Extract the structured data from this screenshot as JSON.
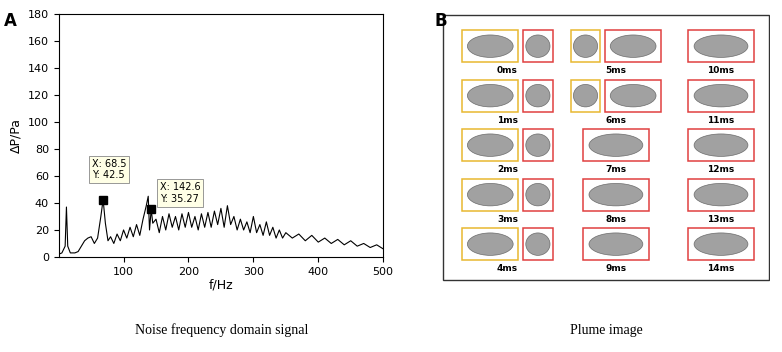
{
  "chart_data": {
    "type": "line",
    "panel": "A",
    "caption": "Noise frequency domain signal",
    "x_label": "f/Hz",
    "y_label": "ΔP/Pa",
    "color": "#000000",
    "x": [
      0,
      5,
      10,
      12,
      14,
      18,
      25,
      30,
      35,
      40,
      45,
      50,
      55,
      60,
      65,
      68.5,
      72,
      76,
      80,
      85,
      90,
      95,
      100,
      105,
      110,
      115,
      120,
      125,
      130,
      135,
      138,
      140,
      142.6,
      145,
      150,
      155,
      160,
      165,
      170,
      175,
      180,
      185,
      190,
      195,
      200,
      205,
      210,
      215,
      220,
      225,
      230,
      235,
      240,
      245,
      250,
      255,
      260,
      265,
      270,
      275,
      280,
      285,
      290,
      295,
      300,
      305,
      310,
      315,
      320,
      325,
      330,
      335,
      340,
      345,
      350,
      360,
      370,
      380,
      390,
      400,
      410,
      420,
      430,
      440,
      450,
      460,
      470,
      480,
      490,
      500
    ],
    "values": [
      2,
      3,
      8,
      37,
      8,
      3,
      3,
      4,
      8,
      12,
      14,
      15,
      10,
      14,
      30,
      42.5,
      25,
      12,
      15,
      10,
      17,
      12,
      20,
      14,
      22,
      15,
      24,
      16,
      28,
      38,
      45,
      20,
      35.27,
      25,
      28,
      18,
      30,
      20,
      32,
      22,
      30,
      20,
      32,
      22,
      33,
      22,
      30,
      20,
      32,
      22,
      33,
      22,
      34,
      24,
      36,
      22,
      38,
      24,
      30,
      20,
      28,
      20,
      26,
      18,
      30,
      18,
      24,
      16,
      26,
      16,
      22,
      14,
      20,
      14,
      18,
      14,
      17,
      12,
      16,
      11,
      14,
      10,
      13,
      9,
      12,
      8,
      10,
      7,
      9,
      6
    ],
    "xlim": [
      0,
      500
    ],
    "xticks": [
      100,
      200,
      300,
      400,
      500
    ],
    "ylim": [
      0,
      180
    ],
    "yticks": [
      0,
      20,
      40,
      60,
      80,
      100,
      120,
      140,
      160,
      180
    ],
    "marker": "square",
    "annotations": [
      {
        "x": 68.5,
        "y": 42.5,
        "text": "X: 68.5\nY: 42.5"
      },
      {
        "x": 142.6,
        "y": 35.27,
        "text": "X: 142.6\nY: 35.27"
      }
    ]
  },
  "diagram": {
    "panel": "B",
    "caption": "Plume image",
    "images": [
      {
        "label": "0ms",
        "colors": [
          "#e8b830",
          "#e04040"
        ]
      },
      {
        "label": "1ms",
        "colors": [
          "#e8b830",
          "#e04040"
        ]
      },
      {
        "label": "2ms",
        "colors": [
          "#e8b830",
          "#e04040"
        ]
      },
      {
        "label": "3ms",
        "colors": [
          "#e8b830",
          "#e04040"
        ]
      },
      {
        "label": "4ms",
        "colors": [
          "#e8b830",
          "#e04040"
        ]
      },
      {
        "label": "5ms",
        "colors": [
          "#e8b830",
          "#e04040"
        ]
      },
      {
        "label": "6ms",
        "colors": [
          "#e8b830",
          "#e04040"
        ]
      },
      {
        "label": "7ms",
        "colors": [
          "#e04040"
        ]
      },
      {
        "label": "8ms",
        "colors": [
          "#e04040"
        ]
      },
      {
        "label": "9ms",
        "colors": [
          "#e04040"
        ]
      },
      {
        "label": "10ms",
        "colors": [
          "#e04040"
        ]
      },
      {
        "label": "11ms",
        "colors": [
          "#e04040"
        ]
      },
      {
        "label": "12ms",
        "colors": [
          "#e04040"
        ]
      },
      {
        "label": "13ms",
        "colors": [
          "#e04040"
        ]
      },
      {
        "label": "14ms",
        "colors": [
          "#e04040"
        ]
      }
    ]
  }
}
